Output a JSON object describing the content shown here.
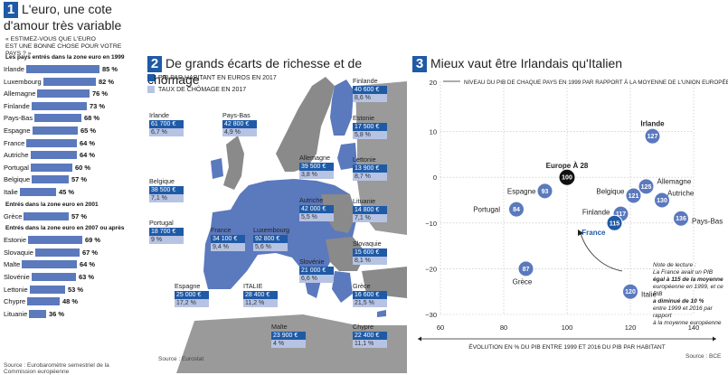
{
  "panel1": {
    "number": "1",
    "title_line1": "L'euro, une cote",
    "title_line2": "d'amour très variable",
    "subtitle_line1": "« ESTIMEZ-VOUS QUE L'EURO",
    "subtitle_line2": "EST UNE BONNE CHOSE POUR VOTRE PAYS ? »",
    "source": "Source : Eurobaromètre semestriel de la Commission européenne",
    "groups": [
      {
        "heading": "Les pays entrés dans la zone euro en 1999",
        "items": [
          {
            "country": "Irlande",
            "value": 85,
            "label": "85 %"
          },
          {
            "country": "Luxembourg",
            "value": 82,
            "label": "82 %"
          },
          {
            "country": "Allemagne",
            "value": 76,
            "label": "76 %"
          },
          {
            "country": "Finlande",
            "value": 73,
            "label": "73 %"
          },
          {
            "country": "Pays-Bas",
            "value": 68,
            "label": "68 %"
          },
          {
            "country": "Espagne",
            "value": 65,
            "label": "65 %"
          },
          {
            "country": "France",
            "value": 64,
            "label": "64 %"
          },
          {
            "country": "Autriche",
            "value": 64,
            "label": "64 %"
          },
          {
            "country": "Portugal",
            "value": 60,
            "label": "60 %"
          },
          {
            "country": "Belgique",
            "value": 57,
            "label": "57 %"
          },
          {
            "country": "Italie",
            "value": 45,
            "label": "45 %"
          }
        ]
      },
      {
        "heading": "Entrés dans la zone euro en 2001",
        "items": [
          {
            "country": "Grèce",
            "value": 57,
            "label": "57 %"
          }
        ]
      },
      {
        "heading": "Entrés dans la zone euro en 2007 ou après",
        "items": [
          {
            "country": "Estonie",
            "value": 69,
            "label": "69 %"
          },
          {
            "country": "Slovaquie",
            "value": 67,
            "label": "67 %"
          },
          {
            "country": "Malte",
            "value": 64,
            "label": "64 %"
          },
          {
            "country": "Slovénie",
            "value": 63,
            "label": "63 %"
          },
          {
            "country": "Lettonie",
            "value": 53,
            "label": "53 %"
          },
          {
            "country": "Chypre",
            "value": 48,
            "label": "48 %"
          },
          {
            "country": "Lituanie",
            "value": 36,
            "label": "36 %"
          }
        ]
      }
    ]
  },
  "panel2": {
    "number": "2",
    "title": "De grands écarts de richesse et de chômage",
    "legend_pib": "PIB PAR HABITANT EN EUROS EN 2017",
    "legend_chomage": "TAUX DE CHÔMAGE EN 2017",
    "source": "Source : Eurostat",
    "colors": {
      "pib": "#1f5aa6",
      "chomage": "#b7c3e3",
      "land": "#8a8a8a",
      "sea": "#ffffff"
    },
    "countries": [
      {
        "name": "Irlande",
        "pib": "61 700 €",
        "chomage": "6,7 %"
      },
      {
        "name": "Pays-Bas",
        "pib": "42 800 €",
        "chomage": "4,9 %"
      },
      {
        "name": "Belgique",
        "pib": "38 500 €",
        "chomage": "7,1 %"
      },
      {
        "name": "Allemagne",
        "pib": "39 500 €",
        "chomage": "3,8 %"
      },
      {
        "name": "Finlande",
        "pib": "40 600 €",
        "chomage": "8,6 %"
      },
      {
        "name": "Estonie",
        "pib": "17 500 €",
        "chomage": "5,8 %"
      },
      {
        "name": "Lettonie",
        "pib": "13 900 €",
        "chomage": "8,7 %"
      },
      {
        "name": "Lituanie",
        "pib": "14 800 €",
        "chomage": "7,1 %"
      },
      {
        "name": "Autriche",
        "pib": "42 000 €",
        "chomage": "5,5 %"
      },
      {
        "name": "Portugal",
        "pib": "18 700 €",
        "chomage": "9 %"
      },
      {
        "name": "France",
        "pib": "34 100 €",
        "chomage": "9,4 %"
      },
      {
        "name": "Luxembourg",
        "pib": "92 800 €",
        "chomage": "5,6 %"
      },
      {
        "name": "Slovaquie",
        "pib": "15 600 €",
        "chomage": "8,1 %"
      },
      {
        "name": "Slovénie",
        "pib": "21 000 €",
        "chomage": "6,6 %"
      },
      {
        "name": "Espagne",
        "pib": "25 000 €",
        "chomage": "17,2 %"
      },
      {
        "name": "ITALIE",
        "pib": "28 400 €",
        "chomage": "11,2 %"
      },
      {
        "name": "Grèce",
        "pib": "16 600 €",
        "chomage": "21,5 %"
      },
      {
        "name": "Malte",
        "pib": "23 900 €",
        "chomage": "4 %"
      },
      {
        "name": "Chypre",
        "pib": "22 400 €",
        "chomage": "11,1 %"
      }
    ]
  },
  "panel3": {
    "number": "3",
    "title": "Mieux vaut être Irlandais qu'Italien",
    "source": "Source : BCE",
    "note_lines": [
      "Note de lecture :",
      "La France avait un PIB",
      "égal à 115 de la moyenne",
      "européenne en 1999, et ce PIB",
      "a diminué de 10 %",
      "entre 1999 et 2016 par rapport",
      "à la moyenne européenne"
    ],
    "colors": {
      "bubble": "#5b79bd",
      "ref": "#111111",
      "highlight": "#1f5aa6"
    },
    "chart_data": {
      "type": "scatter",
      "ylabel": "NIVEAU DU PIB DE CHAQUE PAYS EN 1999 PAR RAPPORT À LA MOYENNE DE L'UNION EUROPÉENNE",
      "xlabel": "ÉVOLUTION EN % DU PIB ENTRE 1999 ET 2016 DU PIB PAR HABITANT",
      "xlim": [
        60,
        140
      ],
      "ylim": [
        -30,
        20
      ],
      "xticks": [
        60,
        80,
        100,
        120,
        140
      ],
      "yticks": [
        -30,
        -20,
        -10,
        0,
        10,
        20
      ],
      "xtick_labels": [
        "60",
        "80",
        "100",
        "120",
        "140"
      ],
      "ytick_labels": [
        "−30",
        "−20",
        "−10",
        "0",
        "10",
        "20"
      ],
      "grid": true,
      "points": [
        {
          "name": "Europe À 28",
          "x": 100,
          "y": 0,
          "value": "100",
          "ref": true
        },
        {
          "name": "Irlande",
          "x": 127,
          "y": 9,
          "value": "127",
          "bold": true
        },
        {
          "name": "Allemagne",
          "x": 125,
          "y": -2,
          "value": "125"
        },
        {
          "name": "Belgique",
          "x": 121,
          "y": -4,
          "value": "121"
        },
        {
          "name": "Autriche",
          "x": 130,
          "y": -5,
          "value": "130"
        },
        {
          "name": "Espagne",
          "x": 93,
          "y": -3,
          "value": "93"
        },
        {
          "name": "Portugal",
          "x": 84,
          "y": -7,
          "value": "84"
        },
        {
          "name": "Finlande",
          "x": 117,
          "y": -8,
          "value": "117"
        },
        {
          "name": "France",
          "x": 115,
          "y": -10,
          "value": "115",
          "highlight": true
        },
        {
          "name": "Pays-Bas",
          "x": 136,
          "y": -9,
          "value": "136"
        },
        {
          "name": "Grèce",
          "x": 87,
          "y": -20,
          "value": "87"
        },
        {
          "name": "Italie",
          "x": 120,
          "y": -25,
          "value": "120"
        }
      ]
    }
  }
}
